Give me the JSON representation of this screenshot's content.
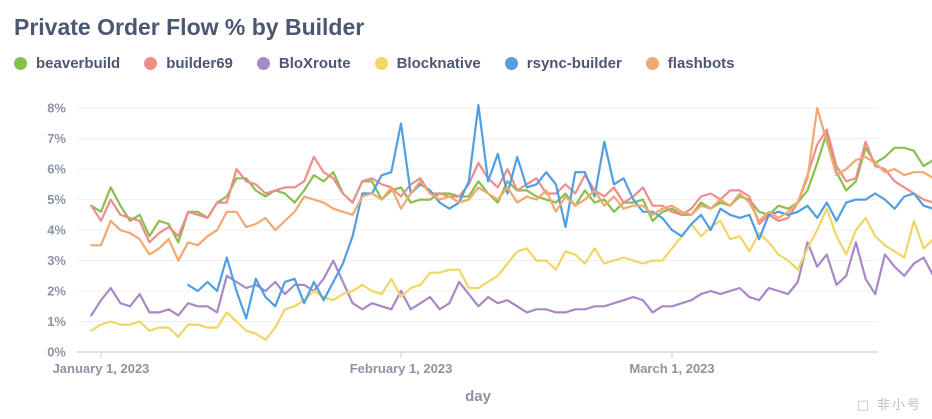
{
  "chart_data": {
    "type": "line",
    "title": "Private Order Flow % by Builder",
    "xlabel": "day",
    "ylabel": "",
    "x_start": "2022-12-31",
    "x_ticks": [
      {
        "date": "2023-01-01",
        "label": "January 1, 2023"
      },
      {
        "date": "2023-02-01",
        "label": "February 1, 2023"
      },
      {
        "date": "2023-03-01",
        "label": "March 1, 2023"
      }
    ],
    "y_ticks": [
      "0%",
      "1%",
      "2%",
      "3%",
      "4%",
      "5%",
      "6%",
      "7%",
      "8%"
    ],
    "ylim": [
      0,
      8.3
    ],
    "grid": "horizontal",
    "legend_position": "top-left",
    "series": [
      {
        "name": "beaverbuild",
        "color": "#88bf4d",
        "values": [
          4.8,
          4.6,
          5.4,
          4.8,
          4.3,
          4.5,
          3.8,
          4.3,
          4.2,
          3.6,
          4.6,
          4.6,
          4.4,
          4.9,
          5.1,
          5.7,
          5.7,
          5.3,
          5.1,
          5.3,
          5.2,
          4.9,
          5.3,
          5.8,
          5.6,
          5.9,
          5.2,
          4.9,
          5.6,
          5.6,
          5.0,
          5.3,
          5.4,
          4.9,
          5.0,
          5.0,
          5.2,
          5.2,
          5.1,
          5.1,
          5.6,
          5.2,
          4.9,
          5.6,
          5.3,
          5.3,
          5.1,
          5.0,
          4.9,
          5.2,
          4.8,
          5.3,
          4.9,
          5.0,
          4.6,
          4.9,
          4.9,
          5.0,
          4.3,
          4.6,
          4.7,
          4.5,
          4.5,
          4.9,
          4.7,
          4.9,
          4.8,
          5.1,
          5.0,
          4.6,
          4.5,
          4.8,
          4.7,
          4.9,
          5.3,
          6.2,
          7.2,
          5.9,
          5.3,
          5.6,
          6.7,
          6.2,
          6.4,
          6.7,
          6.7,
          6.6,
          6.1,
          6.3
        ]
      },
      {
        "name": "builder69",
        "color": "#ef8c8c",
        "values": [
          4.8,
          4.3,
          5.0,
          4.5,
          4.4,
          4.3,
          3.6,
          3.9,
          4.1,
          3.8,
          4.6,
          4.5,
          4.4,
          4.9,
          4.9,
          6.0,
          5.6,
          5.5,
          5.2,
          5.3,
          5.4,
          5.4,
          5.6,
          6.4,
          5.9,
          5.7,
          5.2,
          4.9,
          5.6,
          5.7,
          5.5,
          5.4,
          5.1,
          5.5,
          5.7,
          5.2,
          5.2,
          5.1,
          5.1,
          5.5,
          6.2,
          5.7,
          5.4,
          6.0,
          5.3,
          5.5,
          5.7,
          5.2,
          5.2,
          5.5,
          5.2,
          5.8,
          5.3,
          5.1,
          5.4,
          4.9,
          5.1,
          5.4,
          4.8,
          4.8,
          4.6,
          4.5,
          4.7,
          5.1,
          5.2,
          5.0,
          5.3,
          5.3,
          5.1,
          4.2,
          4.5,
          4.3,
          4.4,
          4.9,
          5.8,
          6.8,
          7.3,
          6.1,
          5.6,
          5.7,
          6.9,
          6.1,
          6.0,
          5.6,
          5.4,
          5.2,
          5.0,
          4.9
        ]
      },
      {
        "name": "BloXroute",
        "color": "#a989c5",
        "values": [
          1.2,
          1.7,
          2.1,
          1.6,
          1.5,
          1.9,
          1.3,
          1.3,
          1.4,
          1.2,
          1.6,
          1.5,
          1.5,
          1.3,
          2.5,
          2.3,
          2.1,
          2.2,
          2.0,
          2.3,
          1.9,
          2.2,
          2.2,
          2.0,
          2.4,
          3.0,
          2.3,
          1.6,
          1.4,
          1.6,
          1.5,
          1.4,
          2.0,
          1.4,
          1.6,
          1.8,
          1.4,
          1.6,
          2.3,
          1.9,
          1.5,
          1.8,
          1.6,
          1.7,
          1.5,
          1.3,
          1.4,
          1.4,
          1.3,
          1.3,
          1.4,
          1.4,
          1.5,
          1.5,
          1.6,
          1.7,
          1.8,
          1.7,
          1.3,
          1.5,
          1.5,
          1.6,
          1.7,
          1.9,
          2.0,
          1.9,
          2.0,
          2.1,
          1.8,
          1.7,
          2.1,
          2.0,
          1.9,
          2.3,
          3.6,
          2.8,
          3.2,
          2.2,
          2.5,
          3.6,
          2.4,
          1.9,
          3.2,
          2.8,
          2.5,
          2.9,
          3.1,
          2.5
        ]
      },
      {
        "name": "Blocknative",
        "color": "#f1d667",
        "values": [
          0.7,
          0.9,
          1.0,
          0.9,
          0.9,
          1.0,
          0.7,
          0.8,
          0.8,
          0.5,
          0.9,
          0.9,
          0.8,
          0.8,
          1.3,
          1.0,
          0.7,
          0.6,
          0.4,
          0.8,
          1.4,
          1.5,
          1.7,
          2.0,
          1.8,
          1.7,
          1.9,
          2.0,
          2.2,
          2.0,
          1.9,
          2.4,
          1.8,
          2.1,
          2.2,
          2.6,
          2.6,
          2.7,
          2.7,
          2.1,
          2.1,
          2.3,
          2.5,
          2.9,
          3.3,
          3.4,
          3.0,
          3.0,
          2.7,
          3.3,
          3.2,
          2.9,
          3.4,
          2.9,
          3.0,
          3.1,
          3.0,
          2.9,
          3.0,
          3.0,
          3.4,
          3.8,
          4.2,
          3.8,
          4.1,
          4.3,
          3.7,
          3.8,
          3.3,
          3.9,
          3.6,
          3.2,
          3.0,
          2.7,
          3.4,
          4.0,
          4.7,
          3.8,
          3.2,
          4.0,
          4.4,
          3.8,
          3.5,
          3.3,
          3.1,
          4.3,
          3.4,
          3.7
        ]
      },
      {
        "name": "rsync-builder",
        "color": "#509ee3",
        "values": [
          null,
          null,
          null,
          null,
          null,
          null,
          null,
          null,
          null,
          null,
          2.2,
          2.0,
          2.3,
          2.0,
          3.1,
          2.0,
          1.1,
          2.4,
          1.8,
          1.5,
          2.3,
          2.4,
          1.6,
          2.3,
          1.7,
          2.3,
          2.9,
          3.8,
          5.2,
          5.2,
          5.8,
          5.9,
          7.5,
          5.2,
          5.5,
          5.3,
          4.9,
          4.7,
          4.9,
          5.6,
          8.1,
          5.6,
          6.5,
          5.2,
          6.4,
          5.4,
          5.5,
          5.9,
          5.5,
          4.1,
          5.9,
          5.9,
          5.1,
          6.9,
          5.5,
          5.7,
          5.0,
          4.6,
          4.6,
          4.4,
          4.0,
          3.8,
          4.2,
          4.5,
          4.0,
          4.7,
          4.5,
          4.4,
          4.5,
          3.7,
          4.5,
          4.6,
          4.5,
          4.6,
          4.8,
          4.4,
          4.9,
          4.3,
          4.9,
          5.0,
          5.0,
          5.2,
          5.0,
          4.7,
          5.1,
          5.2,
          4.8,
          4.7
        ]
      },
      {
        "name": "flashbots",
        "color": "#f2a86f",
        "values": [
          3.5,
          3.5,
          4.3,
          4.0,
          3.9,
          3.7,
          3.2,
          3.4,
          3.7,
          3.0,
          3.6,
          3.5,
          3.8,
          4.0,
          4.6,
          4.6,
          4.1,
          4.2,
          4.4,
          4.0,
          4.3,
          4.6,
          5.1,
          5.0,
          4.9,
          4.7,
          4.6,
          4.5,
          5.1,
          5.2,
          5.0,
          5.4,
          4.7,
          5.2,
          5.6,
          5.2,
          5.0,
          5.1,
          4.9,
          5.0,
          5.4,
          5.2,
          5.0,
          5.4,
          4.9,
          5.1,
          5.0,
          5.3,
          4.6,
          5.1,
          4.8,
          5.0,
          5.3,
          4.8,
          5.1,
          4.7,
          4.8,
          4.8,
          4.5,
          4.7,
          4.8,
          4.6,
          4.5,
          4.8,
          4.7,
          5.0,
          4.8,
          5.2,
          4.9,
          4.3,
          4.6,
          4.4,
          4.6,
          4.9,
          5.7,
          8.0,
          6.9,
          5.8,
          6.0,
          6.3,
          6.4,
          6.2,
          5.9,
          6.0,
          5.8,
          5.9,
          5.9,
          5.7
        ]
      }
    ]
  },
  "watermark": "□ 非小号"
}
